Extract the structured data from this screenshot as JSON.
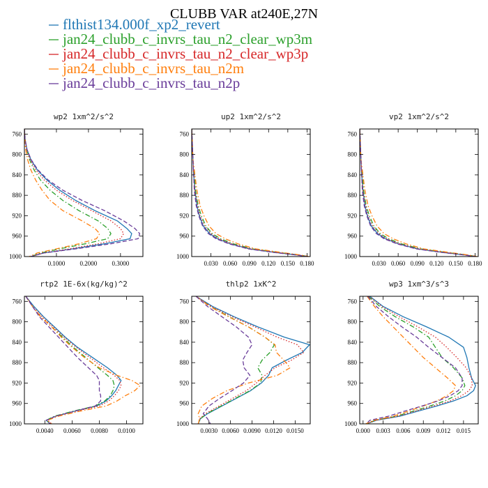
{
  "chart_data": {
    "type": "line",
    "title": "CLUBB VAR at240E,27N",
    "legend": {
      "placement": "top-left",
      "entries": [
        {
          "name": "flthist134.000f_xp2_revert",
          "color": "#1f77b4",
          "dash": "solid"
        },
        {
          "name": "jan24_clubb_c_invrs_tau_n2_clear_wp3m",
          "color": "#2ca02c",
          "dash": "dashdot"
        },
        {
          "name": "jan24_clubb_c_invrs_tau_n2_clear_wp3p",
          "color": "#d62728",
          "dash": "dotted"
        },
        {
          "name": "jan24_clubb_c_invrs_tau_n2m",
          "color": "#ff7f0e",
          "dash": "dashdot"
        },
        {
          "name": "jan24_clubb_c_invrs_tau_n2p",
          "color": "#6a3d9a",
          "dash": "dashed"
        }
      ]
    },
    "y_axis": {
      "ylim": [
        1000,
        750
      ],
      "ticks": [
        "760",
        "800",
        "840",
        "880",
        "920",
        "960",
        "1000"
      ],
      "tick_values": [
        760,
        800,
        840,
        880,
        920,
        960,
        1000
      ],
      "inverted": true
    },
    "panels": [
      {
        "title": "wp2  1xm^2/s^2",
        "xlim": [
          0,
          0.37
        ],
        "xticks": [
          "0.1000",
          "0.2000",
          "0.3000"
        ],
        "xtick_values": [
          0.1,
          0.2,
          0.3
        ],
        "y": [
          750,
          770,
          790,
          810,
          830,
          850,
          870,
          890,
          910,
          930,
          945,
          955,
          965,
          975,
          985,
          993,
          1000
        ],
        "series": [
          [
            0.0,
            0.002,
            0.008,
            0.02,
            0.04,
            0.07,
            0.11,
            0.16,
            0.22,
            0.29,
            0.32,
            0.335,
            0.33,
            0.25,
            0.15,
            0.06,
            0.02
          ],
          [
            0.0,
            0.002,
            0.007,
            0.016,
            0.03,
            0.05,
            0.08,
            0.12,
            0.17,
            0.23,
            0.26,
            0.27,
            0.26,
            0.19,
            0.11,
            0.05,
            0.02
          ],
          [
            0.0,
            0.002,
            0.007,
            0.018,
            0.035,
            0.062,
            0.1,
            0.15,
            0.21,
            0.27,
            0.3,
            0.31,
            0.3,
            0.23,
            0.14,
            0.06,
            0.02
          ],
          [
            0.0,
            0.001,
            0.004,
            0.01,
            0.02,
            0.035,
            0.055,
            0.08,
            0.12,
            0.18,
            0.22,
            0.235,
            0.225,
            0.17,
            0.1,
            0.04,
            0.015
          ],
          [
            0.0,
            0.002,
            0.008,
            0.021,
            0.042,
            0.074,
            0.12,
            0.18,
            0.25,
            0.31,
            0.345,
            0.36,
            0.355,
            0.27,
            0.16,
            0.06,
            0.02
          ]
        ]
      },
      {
        "title": "up2  1xm^2/s^2",
        "xlim": [
          0,
          0.185
        ],
        "xticks": [
          "0.030",
          "0.060",
          "0.090",
          "0.120",
          "0.150",
          "0.180"
        ],
        "xtick_values": [
          0.03,
          0.06,
          0.09,
          0.12,
          0.15,
          0.18
        ],
        "y": [
          750,
          780,
          810,
          840,
          870,
          900,
          920,
          940,
          955,
          965,
          975,
          985,
          992,
          997,
          1000
        ],
        "series": [
          [
            0.0,
            0.001,
            0.002,
            0.003,
            0.005,
            0.008,
            0.012,
            0.018,
            0.028,
            0.04,
            0.06,
            0.09,
            0.13,
            0.165,
            0.182
          ],
          [
            0.0,
            0.001,
            0.002,
            0.004,
            0.006,
            0.01,
            0.015,
            0.022,
            0.032,
            0.045,
            0.065,
            0.095,
            0.135,
            0.168,
            0.182
          ],
          [
            0.0,
            0.001,
            0.002,
            0.003,
            0.005,
            0.009,
            0.013,
            0.02,
            0.03,
            0.042,
            0.062,
            0.092,
            0.132,
            0.166,
            0.182
          ],
          [
            0.0,
            0.001,
            0.002,
            0.005,
            0.008,
            0.013,
            0.019,
            0.027,
            0.038,
            0.052,
            0.072,
            0.1,
            0.14,
            0.17,
            0.183
          ],
          [
            0.0,
            0.001,
            0.002,
            0.003,
            0.004,
            0.007,
            0.011,
            0.017,
            0.026,
            0.038,
            0.058,
            0.088,
            0.128,
            0.163,
            0.18
          ]
        ]
      },
      {
        "title": "vp2  1xm^2/s^2",
        "xlim": [
          0,
          0.185
        ],
        "xticks": [
          "0.030",
          "0.060",
          "0.090",
          "0.120",
          "0.150",
          "0.180"
        ],
        "xtick_values": [
          0.03,
          0.06,
          0.09,
          0.12,
          0.15,
          0.18
        ],
        "y": [
          750,
          780,
          810,
          840,
          870,
          900,
          920,
          940,
          955,
          965,
          975,
          985,
          992,
          997,
          1000
        ],
        "series": [
          [
            0.0,
            0.001,
            0.002,
            0.003,
            0.005,
            0.008,
            0.012,
            0.018,
            0.028,
            0.04,
            0.06,
            0.09,
            0.13,
            0.165,
            0.182
          ],
          [
            0.0,
            0.001,
            0.002,
            0.004,
            0.006,
            0.01,
            0.015,
            0.022,
            0.032,
            0.045,
            0.065,
            0.095,
            0.135,
            0.168,
            0.182
          ],
          [
            0.0,
            0.001,
            0.002,
            0.003,
            0.005,
            0.009,
            0.013,
            0.02,
            0.03,
            0.042,
            0.062,
            0.092,
            0.132,
            0.166,
            0.182
          ],
          [
            0.0,
            0.001,
            0.002,
            0.005,
            0.008,
            0.013,
            0.019,
            0.027,
            0.038,
            0.052,
            0.072,
            0.1,
            0.14,
            0.17,
            0.183
          ],
          [
            0.0,
            0.001,
            0.002,
            0.003,
            0.004,
            0.007,
            0.011,
            0.017,
            0.026,
            0.038,
            0.058,
            0.088,
            0.128,
            0.163,
            0.18
          ]
        ]
      },
      {
        "title": "rtp2  1E-6x(kg/kg)^2",
        "xlim": [
          0.0025,
          0.0112
        ],
        "xticks": [
          "0.0040",
          "0.0060",
          "0.0080",
          "0.0100"
        ],
        "xtick_values": [
          0.004,
          0.006,
          0.008,
          0.01
        ],
        "y": [
          750,
          770,
          790,
          810,
          830,
          850,
          870,
          890,
          905,
          915,
          925,
          935,
          945,
          955,
          965,
          975,
          985,
          993,
          1000
        ],
        "series": [
          [
            0.0026,
            0.0032,
            0.0039,
            0.0047,
            0.0055,
            0.0064,
            0.0075,
            0.0086,
            0.0093,
            0.0096,
            0.0094,
            0.0092,
            0.0089,
            0.0085,
            0.0078,
            0.0062,
            0.0048,
            0.0041,
            0.0044
          ],
          [
            0.0026,
            0.0031,
            0.0037,
            0.0045,
            0.0053,
            0.0061,
            0.007,
            0.0079,
            0.0086,
            0.009,
            0.0091,
            0.009,
            0.0088,
            0.0084,
            0.0077,
            0.0061,
            0.0047,
            0.0041,
            0.0044
          ],
          [
            0.0026,
            0.0031,
            0.0038,
            0.0046,
            0.0054,
            0.0063,
            0.0073,
            0.0083,
            0.0091,
            0.0095,
            0.0096,
            0.0094,
            0.0091,
            0.0087,
            0.008,
            0.0063,
            0.0048,
            0.0042,
            0.0045
          ],
          [
            0.0026,
            0.0031,
            0.0037,
            0.0045,
            0.0052,
            0.006,
            0.0069,
            0.008,
            0.0093,
            0.0104,
            0.011,
            0.0106,
            0.0099,
            0.0093,
            0.0085,
            0.0066,
            0.005,
            0.0042,
            0.0045
          ],
          [
            0.0026,
            0.0031,
            0.0036,
            0.0043,
            0.005,
            0.0057,
            0.0064,
            0.0072,
            0.0078,
            0.008,
            0.008,
            0.008,
            0.0081,
            0.0081,
            0.0077,
            0.0062,
            0.0048,
            0.0041,
            0.0044
          ]
        ]
      },
      {
        "title": "thlp2  1xK^2",
        "xlim": [
          0.0006,
          0.0171
        ],
        "xticks": [
          "0.0030",
          "0.0060",
          "0.0090",
          "0.0120",
          "0.0150"
        ],
        "xtick_values": [
          0.003,
          0.006,
          0.009,
          0.012,
          0.015
        ],
        "y": [
          750,
          770,
          790,
          810,
          830,
          845,
          860,
          875,
          890,
          905,
          920,
          935,
          950,
          965,
          980,
          990,
          1000
        ],
        "series": [
          [
            0.0012,
            0.0035,
            0.0065,
            0.0098,
            0.0135,
            0.017,
            0.016,
            0.0138,
            0.0118,
            0.0113,
            0.0103,
            0.0088,
            0.0068,
            0.0048,
            0.0028,
            0.0018,
            0.0015
          ],
          [
            0.0012,
            0.0032,
            0.0058,
            0.0085,
            0.0108,
            0.0121,
            0.0115,
            0.0104,
            0.0098,
            0.0104,
            0.0102,
            0.0087,
            0.0067,
            0.0047,
            0.0027,
            0.0018,
            0.0015
          ],
          [
            0.0012,
            0.0033,
            0.0062,
            0.0094,
            0.0125,
            0.0153,
            0.0162,
            0.0145,
            0.0122,
            0.0108,
            0.0096,
            0.0082,
            0.0063,
            0.0044,
            0.0025,
            0.0017,
            0.0015
          ],
          [
            0.0012,
            0.0031,
            0.0057,
            0.0085,
            0.0108,
            0.0122,
            0.0124,
            0.0134,
            0.0143,
            0.0125,
            0.0085,
            0.0055,
            0.0035,
            0.002,
            0.0015,
            0.0017,
            0.0015
          ],
          [
            0.0012,
            0.0028,
            0.0048,
            0.0068,
            0.0085,
            0.009,
            0.0083,
            0.0077,
            0.0079,
            0.0087,
            0.0078,
            0.0062,
            0.0045,
            0.003,
            0.0022,
            0.0028,
            0.0032
          ]
        ]
      },
      {
        "title": "wp3  1xm^3/s^3",
        "xlim": [
          -0.0005,
          0.0172
        ],
        "xticks": [
          "0.000",
          "0.003",
          "0.006",
          "0.009",
          "0.012",
          "0.015"
        ],
        "xtick_values": [
          0.0,
          0.003,
          0.006,
          0.009,
          0.012,
          0.015
        ],
        "y": [
          750,
          770,
          790,
          810,
          830,
          850,
          870,
          890,
          910,
          925,
          935,
          945,
          955,
          965,
          975,
          985,
          993,
          1000
        ],
        "series": [
          [
            0.001,
            0.003,
            0.006,
            0.0095,
            0.0128,
            0.015,
            0.0155,
            0.0158,
            0.0162,
            0.0168,
            0.0165,
            0.0155,
            0.0135,
            0.011,
            0.0082,
            0.0055,
            0.002,
            0.0005
          ],
          [
            0.0008,
            0.0025,
            0.0048,
            0.0075,
            0.0098,
            0.0108,
            0.0118,
            0.0135,
            0.0148,
            0.0152,
            0.0148,
            0.0138,
            0.0122,
            0.01,
            0.0075,
            0.005,
            0.0018,
            0.0005
          ],
          [
            0.0009,
            0.0028,
            0.0054,
            0.0082,
            0.0108,
            0.0125,
            0.014,
            0.0154,
            0.0162,
            0.0163,
            0.0158,
            0.0147,
            0.013,
            0.0105,
            0.0078,
            0.0052,
            0.0019,
            0.0005
          ],
          [
            0.0006,
            0.0017,
            0.003,
            0.0045,
            0.006,
            0.0075,
            0.009,
            0.0108,
            0.0126,
            0.0138,
            0.0135,
            0.0125,
            0.011,
            0.009,
            0.0068,
            0.0045,
            0.0016,
            0.0004
          ],
          [
            0.0007,
            0.002,
            0.0038,
            0.0058,
            0.008,
            0.0098,
            0.0118,
            0.0138,
            0.0148,
            0.0148,
            0.0142,
            0.013,
            0.0112,
            0.0088,
            0.0062,
            0.0038,
            0.001,
            0.0005
          ]
        ]
      }
    ]
  }
}
